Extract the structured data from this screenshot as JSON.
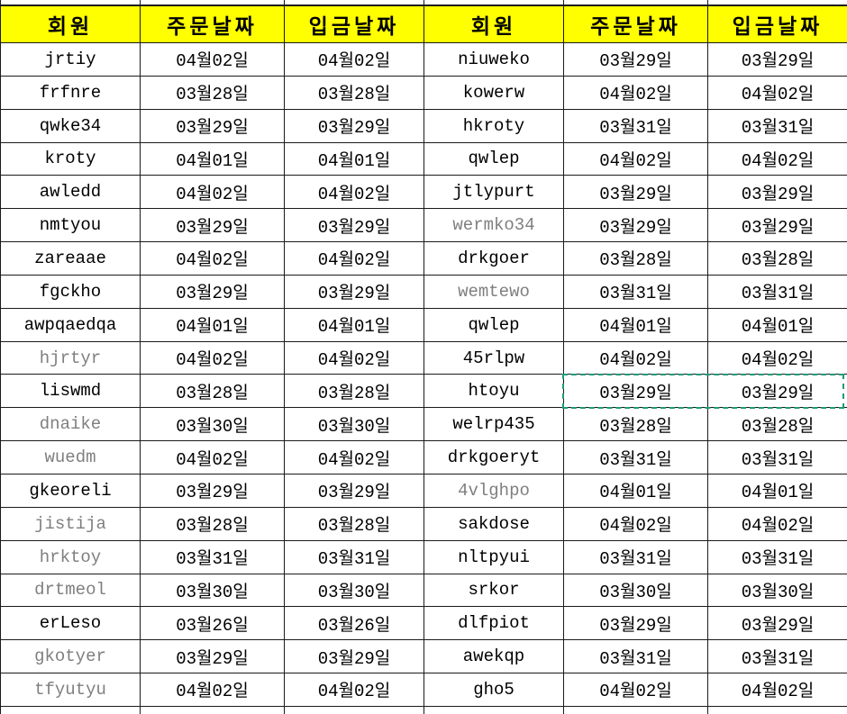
{
  "app": {
    "description": "spreadsheet-member-date-table"
  },
  "colors": {
    "header_bg": "#ffff00",
    "grid_line": "#1a1a1a",
    "text": "#000000",
    "gray_text": "#7f7f7f",
    "copy_selection_border": "#1e9b77",
    "cell_bg": "#ffffff"
  },
  "table": {
    "columns": [
      "회원",
      "주문날짜",
      "입금날짜",
      "회원",
      "주문날짜",
      "입금날짜"
    ],
    "rows": [
      [
        "jrtiy",
        "04월02일",
        "04월02일",
        "niuweko",
        "03월29일",
        "03월29일"
      ],
      [
        "frfnre",
        "03월28일",
        "03월28일",
        "kowerw",
        "04월02일",
        "04월02일"
      ],
      [
        "qwke34",
        "03월29일",
        "03월29일",
        "hkroty",
        "03월31일",
        "03월31일"
      ],
      [
        "kroty",
        "04월01일",
        "04월01일",
        "qwlep",
        "04월02일",
        "04월02일"
      ],
      [
        "awledd",
        "04월02일",
        "04월02일",
        "jtlypurt",
        "03월29일",
        "03월29일"
      ],
      [
        "nmtyou",
        "03월29일",
        "03월29일",
        "wermko34",
        "03월29일",
        "03월29일"
      ],
      [
        "zareaae",
        "04월02일",
        "04월02일",
        "drkgoer",
        "03월28일",
        "03월28일"
      ],
      [
        "fgckho",
        "03월29일",
        "03월29일",
        "wemtewo",
        "03월31일",
        "03월31일"
      ],
      [
        "awpqaedqa",
        "04월01일",
        "04월01일",
        "qwlep",
        "04월01일",
        "04월01일"
      ],
      [
        "hjrtyr",
        "04월02일",
        "04월02일",
        "45rlpw",
        "04월02일",
        "04월02일"
      ],
      [
        "liswmd",
        "03월28일",
        "03월28일",
        "htoyu",
        "03월29일",
        "03월29일"
      ],
      [
        "dnaike",
        "03월30일",
        "03월30일",
        "welrp435",
        "03월28일",
        "03월28일"
      ],
      [
        "wuedm",
        "04월02일",
        "04월02일",
        "drkgoeryt",
        "03월31일",
        "03월31일"
      ],
      [
        "gkeoreli",
        "03월29일",
        "03월29일",
        "4vlghpo",
        "04월01일",
        "04월01일"
      ],
      [
        "jistija",
        "03월28일",
        "03월28일",
        "sakdose",
        "04월02일",
        "04월02일"
      ],
      [
        "hrktoy",
        "03월31일",
        "03월31일",
        "nltpyui",
        "03월31일",
        "03월31일"
      ],
      [
        "drtmeol",
        "03월30일",
        "03월30일",
        "srkor",
        "03월30일",
        "03월30일"
      ],
      [
        "erLeso",
        "03월26일",
        "03월26일",
        "dlfpiot",
        "03월29일",
        "03월29일"
      ],
      [
        "gkotyer",
        "03월29일",
        "03월29일",
        "awekqp",
        "03월31일",
        "03월31일"
      ],
      [
        "tfyutyu",
        "04월02일",
        "04월02일",
        "gho5",
        "04월02일",
        "04월02일"
      ]
    ],
    "gray_member_cells": [
      [
        9,
        0
      ],
      [
        11,
        0
      ],
      [
        12,
        0
      ],
      [
        14,
        0
      ],
      [
        15,
        0
      ],
      [
        16,
        0
      ],
      [
        18,
        0
      ],
      [
        19,
        0
      ],
      [
        5,
        3
      ],
      [
        7,
        3
      ],
      [
        13,
        3
      ]
    ],
    "copy_selection": {
      "row_index": 10,
      "col_indexes": [
        4,
        5
      ],
      "member": "htoyu",
      "values": [
        "03월29일",
        "03월29일"
      ]
    }
  }
}
